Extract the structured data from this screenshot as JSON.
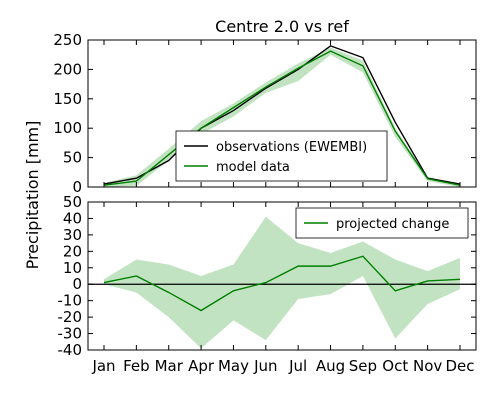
{
  "chart_data": {
    "title": "Centre 2.0 vs ref",
    "ylabel": "Precipitation [mm]",
    "categories": [
      "Jan",
      "Feb",
      "Mar",
      "Apr",
      "May",
      "Jun",
      "Jul",
      "Aug",
      "Sep",
      "Oct",
      "Nov",
      "Dec"
    ],
    "colors": {
      "observations": "#000000",
      "model": "#008000",
      "band": "#b7deb7"
    },
    "panels": [
      {
        "type": "line",
        "ylim": [
          0,
          250
        ],
        "yticks": [
          0,
          50,
          100,
          150,
          200,
          250
        ],
        "legend": {
          "placement": "lower-center",
          "entries": [
            "observations (EWEMBI)",
            "model data"
          ]
        },
        "series": [
          {
            "name": "observations (EWEMBI)",
            "role": "observations",
            "values": [
              5,
              15,
              45,
              100,
              130,
              168,
              200,
              240,
              220,
              110,
              15,
              5
            ]
          },
          {
            "name": "model data",
            "role": "model",
            "values": [
              3,
              10,
              55,
              100,
              135,
              170,
              202,
              231,
              206,
              95,
              14,
              3
            ],
            "band_lower": [
              0,
              2,
              45,
              90,
              120,
              160,
              180,
              225,
              195,
              85,
              10,
              0
            ],
            "band_upper": [
              7,
              20,
              65,
              112,
              142,
              178,
              210,
              237,
              215,
              100,
              17,
              6
            ]
          }
        ]
      },
      {
        "type": "line",
        "ylim": [
          -40,
          50
        ],
        "yticks": [
          -40,
          -30,
          -20,
          -10,
          0,
          10,
          20,
          30,
          40,
          50
        ],
        "zero_line": true,
        "legend": {
          "placement": "top-right",
          "entries": [
            "projected change"
          ]
        },
        "series": [
          {
            "name": "projected change",
            "role": "model",
            "values": [
              1,
              5,
              -5,
              -16,
              -4,
              1,
              11,
              11,
              17,
              -4,
              2,
              3
            ],
            "band_lower": [
              0,
              -5,
              -20,
              -39,
              -22,
              -34,
              -9,
              -6,
              5,
              -33,
              -12,
              -3
            ],
            "band_upper": [
              3,
              15,
              12,
              5,
              12,
              41,
              25,
              19,
              26,
              15,
              8,
              16
            ]
          }
        ]
      }
    ]
  }
}
